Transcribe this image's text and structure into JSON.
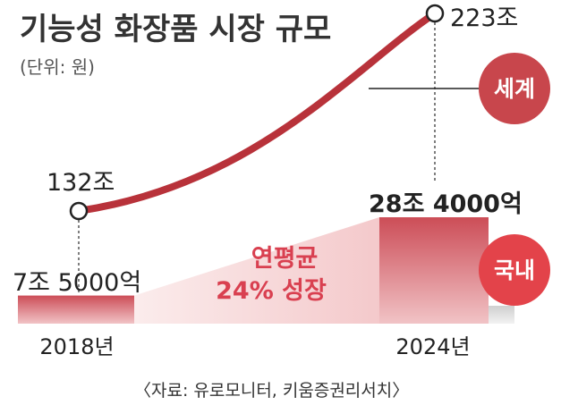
{
  "title": "기능성 화장품 시장 규모",
  "unit": "(단위: 원)",
  "source": "〈자료: 유로모니터, 키움증권리서치〉",
  "growth_note": {
    "line1": "연평균",
    "line2": "24% 성장"
  },
  "colors": {
    "global_line": "#b8323a",
    "domestic_bar": "#d95f66",
    "global_tag": "#c8464c",
    "domestic_tag": "#e3434a",
    "text_dark": "#222222",
    "growth_text": "#d94050"
  },
  "chart_data": [
    {
      "type": "line",
      "series_label": "세계",
      "categories": [
        "2018년",
        "2024년"
      ],
      "values": [
        132,
        223
      ],
      "value_labels": [
        "132조",
        "223조"
      ],
      "value_unit": "조원"
    },
    {
      "type": "bar",
      "series_label": "국내",
      "categories": [
        "2018년",
        "2024년"
      ],
      "values": [
        7.5,
        28.4
      ],
      "value_labels": [
        "7조 5000억",
        "28조 4000억"
      ],
      "value_unit": "조원"
    }
  ]
}
